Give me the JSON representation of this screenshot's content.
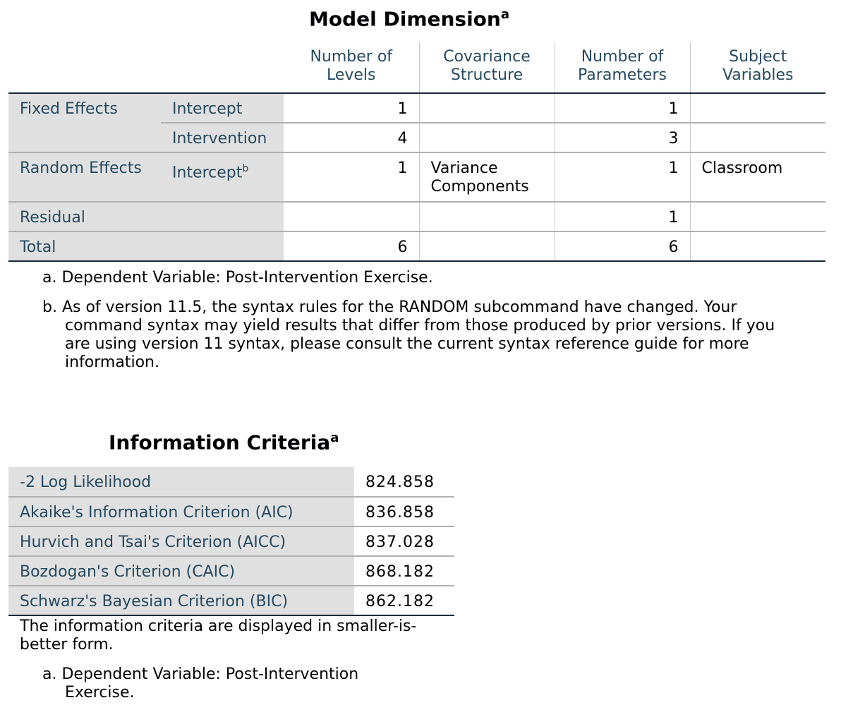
{
  "model_dimension": {
    "title": "Model Dimension",
    "title_sup": "a",
    "headers": [
      "Number of Levels",
      "Covariance Structure",
      "Number of Parameters",
      "Subject Variables"
    ],
    "rows": [
      {
        "group": "Fixed Effects",
        "effect": "Intercept",
        "sup": "",
        "levels": "1",
        "cov": "",
        "params": "1",
        "subject": ""
      },
      {
        "group": "",
        "effect": "Intervention",
        "sup": "",
        "levels": "4",
        "cov": "",
        "params": "3",
        "subject": ""
      },
      {
        "group": "Random Effects",
        "effect": "Intercept",
        "sup": "b",
        "levels": "1",
        "cov": "Variance Components",
        "params": "1",
        "subject": "Classroom"
      },
      {
        "group": "Residual",
        "effect": "",
        "sup": "",
        "levels": "",
        "cov": "",
        "params": "1",
        "subject": ""
      },
      {
        "group": "Total",
        "effect": "",
        "sup": "",
        "levels": "6",
        "cov": "",
        "params": "6",
        "subject": ""
      }
    ],
    "footnotes": [
      "a. Dependent Variable: Post-Intervention Exercise.",
      "b. As of version 11.5, the syntax rules for the RANDOM subcommand have changed. Your command syntax may yield results that differ from those produced by prior versions. If you are using version 11 syntax, please consult the current syntax reference guide for more information."
    ]
  },
  "information_criteria": {
    "title": "Information Criteria",
    "title_sup": "a",
    "rows": [
      {
        "label": "-2 Log Likelihood",
        "value": "824.858"
      },
      {
        "label": "Akaike's Information Criterion (AIC)",
        "value": "836.858"
      },
      {
        "label": "Hurvich and Tsai's Criterion (AICC)",
        "value": "837.028"
      },
      {
        "label": "Bozdogan's Criterion (CAIC)",
        "value": "868.182"
      },
      {
        "label": "Schwarz's Bayesian Criterion (BIC)",
        "value": "862.182"
      }
    ],
    "note": "The information criteria are displayed in smaller-is-better form.",
    "footnote": "a. Dependent Variable: Post-Intervention Exercise."
  }
}
